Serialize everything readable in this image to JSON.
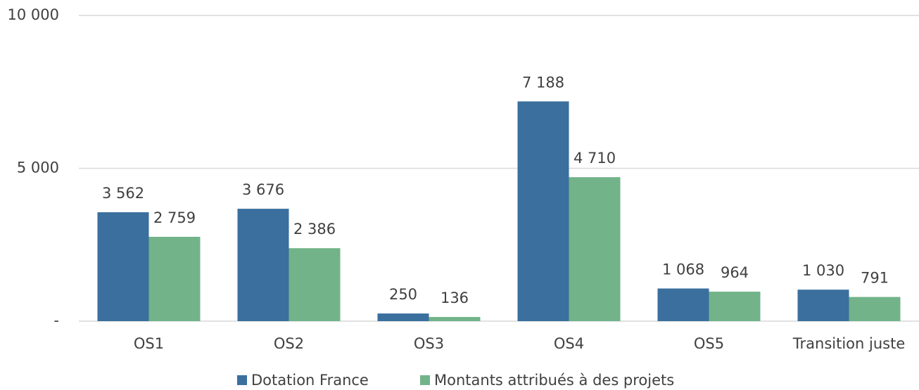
{
  "chart_data": {
    "type": "bar",
    "categories": [
      "OS1",
      "OS2",
      "OS3",
      "OS4",
      "OS5",
      "Transition juste"
    ],
    "series": [
      {
        "name": "Dotation France",
        "color": "#3a6f9e",
        "values": [
          3562,
          3676,
          250,
          7188,
          1068,
          1030
        ],
        "value_labels": [
          "3 562",
          "3 676",
          "250",
          "7 188",
          "1 068",
          "1 030"
        ]
      },
      {
        "name": "Montants attribués à des projets",
        "color": "#72b38a",
        "values": [
          2759,
          2386,
          136,
          4710,
          964,
          791
        ],
        "value_labels": [
          "2 759",
          "2 386",
          "136",
          "4 710",
          "964",
          "791"
        ]
      }
    ],
    "ylim": [
      0,
      10000
    ],
    "yticks": [
      {
        "value": 0,
        "label": "-"
      },
      {
        "value": 5000,
        "label": "5 000"
      },
      {
        "value": 10000,
        "label": "10 000"
      }
    ],
    "grid": true,
    "legend": "bottom"
  }
}
